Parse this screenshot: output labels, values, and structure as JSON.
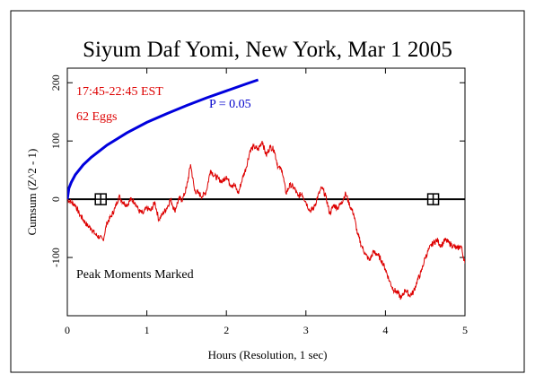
{
  "chart_data": {
    "type": "line",
    "title": "Siyum Daf Yomi, New York, Mar 1 2005",
    "xlabel": "Hours (Resolution, 1 sec)",
    "ylabel": "Cumsum (Z^2 - 1)",
    "xlim": [
      0,
      5
    ],
    "ylim": [
      -200,
      225
    ],
    "x_ticks": [
      0,
      1,
      2,
      3,
      4,
      5
    ],
    "y_ticks": [
      -100,
      0,
      100,
      200
    ],
    "grid": false,
    "annotations": {
      "time_window": "17:45-22:45 EST",
      "egg_count": "62 Eggs",
      "probability_label": "P = 0.05",
      "peak_note": "Peak Moments Marked"
    },
    "colors": {
      "cumsum": "#dd0000",
      "probability": "#0000dd",
      "baseline": "#000000",
      "text_red": "#dd0000",
      "text_blue": "#0000cc"
    },
    "series": [
      {
        "kind": "cumsum",
        "x": [
          0,
          0.05,
          0.1,
          0.15,
          0.2,
          0.25,
          0.3,
          0.35,
          0.4,
          0.45,
          0.5,
          0.55,
          0.6,
          0.65,
          0.7,
          0.75,
          0.8,
          0.85,
          0.9,
          0.95,
          1.0,
          1.05,
          1.1,
          1.15,
          1.2,
          1.25,
          1.3,
          1.35,
          1.4,
          1.45,
          1.5,
          1.55,
          1.6,
          1.65,
          1.7,
          1.75,
          1.8,
          1.85,
          1.9,
          1.95,
          2.0,
          2.05,
          2.1,
          2.15,
          2.2,
          2.25,
          2.3,
          2.35,
          2.4,
          2.45,
          2.5,
          2.55,
          2.6,
          2.65,
          2.7,
          2.75,
          2.8,
          2.85,
          2.9,
          2.95,
          3.0,
          3.05,
          3.1,
          3.15,
          3.2,
          3.25,
          3.3,
          3.35,
          3.4,
          3.45,
          3.5,
          3.55,
          3.6,
          3.65,
          3.7,
          3.75,
          3.8,
          3.85,
          3.9,
          3.95,
          4.0,
          4.05,
          4.1,
          4.15,
          4.2,
          4.25,
          4.3,
          4.35,
          4.4,
          4.45,
          4.5,
          4.55,
          4.6,
          4.65,
          4.7,
          4.75,
          4.8,
          4.85,
          4.9,
          4.95,
          5.0
        ],
        "y": [
          0,
          -5,
          -10,
          -25,
          -35,
          -45,
          -50,
          -60,
          -65,
          -70,
          -40,
          -30,
          -15,
          5,
          -5,
          -10,
          0,
          -5,
          -20,
          -25,
          -15,
          -20,
          -5,
          -35,
          -25,
          -15,
          0,
          -20,
          0,
          0,
          20,
          60,
          15,
          10,
          5,
          15,
          50,
          40,
          35,
          30,
          40,
          25,
          25,
          10,
          35,
          55,
          85,
          90,
          85,
          100,
          75,
          90,
          85,
          55,
          50,
          10,
          25,
          20,
          5,
          10,
          -5,
          -20,
          -15,
          5,
          20,
          5,
          -25,
          -10,
          -15,
          -5,
          10,
          -10,
          -25,
          -60,
          -80,
          -95,
          -105,
          -90,
          -95,
          -105,
          -120,
          -140,
          -155,
          -160,
          -170,
          -155,
          -165,
          -160,
          -140,
          -125,
          -100,
          -85,
          -75,
          -70,
          -80,
          -70,
          -75,
          -80,
          -85,
          -80,
          -110
        ]
      },
      {
        "kind": "probability",
        "x": [
          0,
          0.02,
          0.05,
          0.1,
          0.2,
          0.3,
          0.5,
          0.75,
          1.0,
          1.25,
          1.5,
          1.75,
          2.0,
          2.25,
          2.4
        ],
        "y": [
          0,
          19,
          29,
          42,
          59,
          72,
          93,
          114,
          132,
          147,
          161,
          174,
          186,
          198,
          205
        ]
      }
    ],
    "peak_markers": [
      {
        "x": 0.42,
        "y": 0
      },
      {
        "x": 4.6,
        "y": 0
      }
    ]
  }
}
